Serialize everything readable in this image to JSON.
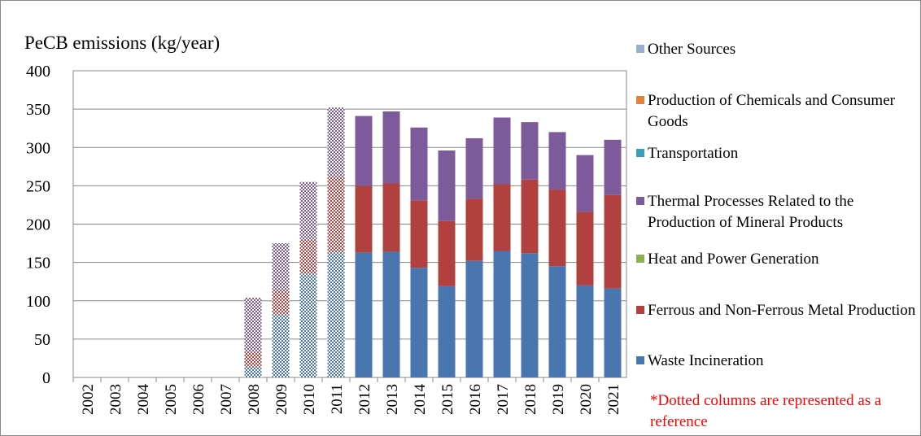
{
  "chart_data": {
    "type": "stacked_bar",
    "title": "PeCB emissions (kg/year)",
    "annotation": "*Dotted columns are represented as a  reference",
    "categories": [
      "2002",
      "2003",
      "2004",
      "2005",
      "2006",
      "2007",
      "2008",
      "2009",
      "2010",
      "2011",
      "2012",
      "2013",
      "2014",
      "2015",
      "2016",
      "2017",
      "2018",
      "2019",
      "2020",
      "2021"
    ],
    "dotted": [
      false,
      false,
      false,
      false,
      false,
      false,
      true,
      true,
      true,
      true,
      false,
      false,
      false,
      false,
      false,
      false,
      false,
      false,
      false,
      false
    ],
    "series": [
      {
        "name": "Waste Incineration",
        "color": "#4a76b0",
        "values": [
          0,
          0,
          0,
          0,
          0,
          0,
          14,
          82,
          135,
          163,
          163,
          164,
          143,
          119,
          152,
          165,
          162,
          145,
          120,
          116
        ]
      },
      {
        "name": "Ferrous and Non-Ferrous Metal Production",
        "color": "#b0413e",
        "values": [
          0,
          0,
          0,
          0,
          0,
          0,
          19,
          32,
          45,
          99,
          87,
          89,
          88,
          85,
          81,
          87,
          96,
          100,
          96,
          122
        ]
      },
      {
        "name": "Heat and Power Generation",
        "color": "#8db050",
        "values": [
          0,
          0,
          0,
          0,
          0,
          0,
          0,
          0,
          0,
          0,
          0,
          0,
          0,
          0,
          0,
          0,
          0,
          0,
          0,
          0
        ]
      },
      {
        "name": "Thermal Processes Related to the Production of Mineral Products",
        "color": "#7d5b9a",
        "values": [
          0,
          0,
          0,
          0,
          0,
          0,
          71,
          61,
          75,
          90,
          91,
          94,
          95,
          92,
          79,
          87,
          75,
          75,
          74,
          72
        ]
      },
      {
        "name": "Transportation",
        "color": "#3aa0b8",
        "values": [
          0,
          0,
          0,
          0,
          0,
          0,
          0,
          0,
          0,
          0,
          0,
          0,
          0,
          0,
          0,
          0,
          0,
          0,
          0,
          0
        ]
      },
      {
        "name": "Production of Chemicals and Consumer Goods",
        "color": "#e0823c",
        "values": [
          0,
          0,
          0,
          0,
          0,
          0,
          0,
          0,
          0,
          0,
          0,
          0,
          0,
          0,
          0,
          0,
          0,
          0,
          0,
          0
        ]
      },
      {
        "name": "Other Sources",
        "color": "#9aaed0",
        "values": [
          0,
          0,
          0,
          0,
          0,
          0,
          0,
          0,
          0,
          0,
          0,
          0,
          0,
          0,
          0,
          0,
          0,
          0,
          0,
          0
        ]
      }
    ],
    "ylim": [
      0,
      400
    ],
    "yticks": [
      0,
      50,
      100,
      150,
      200,
      250,
      300,
      350,
      400
    ],
    "grid": true
  }
}
